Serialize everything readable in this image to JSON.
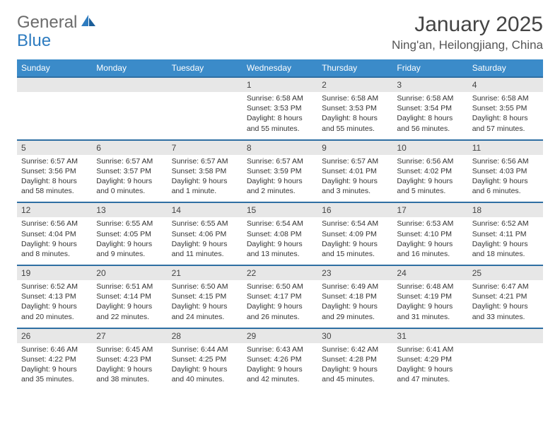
{
  "brand": {
    "part1": "General",
    "part2": "Blue"
  },
  "colors": {
    "header_bg": "#3b8bc9",
    "daynum_bg": "#e7e7e7",
    "week_border": "#2f6fa3",
    "brand_blue": "#2e7cc0",
    "text": "#333333"
  },
  "title": "January 2025",
  "location": "Ning'an, Heilongjiang, China",
  "weekdays": [
    "Sunday",
    "Monday",
    "Tuesday",
    "Wednesday",
    "Thursday",
    "Friday",
    "Saturday"
  ],
  "weeks": [
    [
      {
        "num": "",
        "lines": []
      },
      {
        "num": "",
        "lines": []
      },
      {
        "num": "",
        "lines": []
      },
      {
        "num": "1",
        "lines": [
          "Sunrise: 6:58 AM",
          "Sunset: 3:53 PM",
          "Daylight: 8 hours",
          "and 55 minutes."
        ]
      },
      {
        "num": "2",
        "lines": [
          "Sunrise: 6:58 AM",
          "Sunset: 3:53 PM",
          "Daylight: 8 hours",
          "and 55 minutes."
        ]
      },
      {
        "num": "3",
        "lines": [
          "Sunrise: 6:58 AM",
          "Sunset: 3:54 PM",
          "Daylight: 8 hours",
          "and 56 minutes."
        ]
      },
      {
        "num": "4",
        "lines": [
          "Sunrise: 6:58 AM",
          "Sunset: 3:55 PM",
          "Daylight: 8 hours",
          "and 57 minutes."
        ]
      }
    ],
    [
      {
        "num": "5",
        "lines": [
          "Sunrise: 6:57 AM",
          "Sunset: 3:56 PM",
          "Daylight: 8 hours",
          "and 58 minutes."
        ]
      },
      {
        "num": "6",
        "lines": [
          "Sunrise: 6:57 AM",
          "Sunset: 3:57 PM",
          "Daylight: 9 hours",
          "and 0 minutes."
        ]
      },
      {
        "num": "7",
        "lines": [
          "Sunrise: 6:57 AM",
          "Sunset: 3:58 PM",
          "Daylight: 9 hours",
          "and 1 minute."
        ]
      },
      {
        "num": "8",
        "lines": [
          "Sunrise: 6:57 AM",
          "Sunset: 3:59 PM",
          "Daylight: 9 hours",
          "and 2 minutes."
        ]
      },
      {
        "num": "9",
        "lines": [
          "Sunrise: 6:57 AM",
          "Sunset: 4:01 PM",
          "Daylight: 9 hours",
          "and 3 minutes."
        ]
      },
      {
        "num": "10",
        "lines": [
          "Sunrise: 6:56 AM",
          "Sunset: 4:02 PM",
          "Daylight: 9 hours",
          "and 5 minutes."
        ]
      },
      {
        "num": "11",
        "lines": [
          "Sunrise: 6:56 AM",
          "Sunset: 4:03 PM",
          "Daylight: 9 hours",
          "and 6 minutes."
        ]
      }
    ],
    [
      {
        "num": "12",
        "lines": [
          "Sunrise: 6:56 AM",
          "Sunset: 4:04 PM",
          "Daylight: 9 hours",
          "and 8 minutes."
        ]
      },
      {
        "num": "13",
        "lines": [
          "Sunrise: 6:55 AM",
          "Sunset: 4:05 PM",
          "Daylight: 9 hours",
          "and 9 minutes."
        ]
      },
      {
        "num": "14",
        "lines": [
          "Sunrise: 6:55 AM",
          "Sunset: 4:06 PM",
          "Daylight: 9 hours",
          "and 11 minutes."
        ]
      },
      {
        "num": "15",
        "lines": [
          "Sunrise: 6:54 AM",
          "Sunset: 4:08 PM",
          "Daylight: 9 hours",
          "and 13 minutes."
        ]
      },
      {
        "num": "16",
        "lines": [
          "Sunrise: 6:54 AM",
          "Sunset: 4:09 PM",
          "Daylight: 9 hours",
          "and 15 minutes."
        ]
      },
      {
        "num": "17",
        "lines": [
          "Sunrise: 6:53 AM",
          "Sunset: 4:10 PM",
          "Daylight: 9 hours",
          "and 16 minutes."
        ]
      },
      {
        "num": "18",
        "lines": [
          "Sunrise: 6:52 AM",
          "Sunset: 4:11 PM",
          "Daylight: 9 hours",
          "and 18 minutes."
        ]
      }
    ],
    [
      {
        "num": "19",
        "lines": [
          "Sunrise: 6:52 AM",
          "Sunset: 4:13 PM",
          "Daylight: 9 hours",
          "and 20 minutes."
        ]
      },
      {
        "num": "20",
        "lines": [
          "Sunrise: 6:51 AM",
          "Sunset: 4:14 PM",
          "Daylight: 9 hours",
          "and 22 minutes."
        ]
      },
      {
        "num": "21",
        "lines": [
          "Sunrise: 6:50 AM",
          "Sunset: 4:15 PM",
          "Daylight: 9 hours",
          "and 24 minutes."
        ]
      },
      {
        "num": "22",
        "lines": [
          "Sunrise: 6:50 AM",
          "Sunset: 4:17 PM",
          "Daylight: 9 hours",
          "and 26 minutes."
        ]
      },
      {
        "num": "23",
        "lines": [
          "Sunrise: 6:49 AM",
          "Sunset: 4:18 PM",
          "Daylight: 9 hours",
          "and 29 minutes."
        ]
      },
      {
        "num": "24",
        "lines": [
          "Sunrise: 6:48 AM",
          "Sunset: 4:19 PM",
          "Daylight: 9 hours",
          "and 31 minutes."
        ]
      },
      {
        "num": "25",
        "lines": [
          "Sunrise: 6:47 AM",
          "Sunset: 4:21 PM",
          "Daylight: 9 hours",
          "and 33 minutes."
        ]
      }
    ],
    [
      {
        "num": "26",
        "lines": [
          "Sunrise: 6:46 AM",
          "Sunset: 4:22 PM",
          "Daylight: 9 hours",
          "and 35 minutes."
        ]
      },
      {
        "num": "27",
        "lines": [
          "Sunrise: 6:45 AM",
          "Sunset: 4:23 PM",
          "Daylight: 9 hours",
          "and 38 minutes."
        ]
      },
      {
        "num": "28",
        "lines": [
          "Sunrise: 6:44 AM",
          "Sunset: 4:25 PM",
          "Daylight: 9 hours",
          "and 40 minutes."
        ]
      },
      {
        "num": "29",
        "lines": [
          "Sunrise: 6:43 AM",
          "Sunset: 4:26 PM",
          "Daylight: 9 hours",
          "and 42 minutes."
        ]
      },
      {
        "num": "30",
        "lines": [
          "Sunrise: 6:42 AM",
          "Sunset: 4:28 PM",
          "Daylight: 9 hours",
          "and 45 minutes."
        ]
      },
      {
        "num": "31",
        "lines": [
          "Sunrise: 6:41 AM",
          "Sunset: 4:29 PM",
          "Daylight: 9 hours",
          "and 47 minutes."
        ]
      },
      {
        "num": "",
        "lines": []
      }
    ]
  ]
}
